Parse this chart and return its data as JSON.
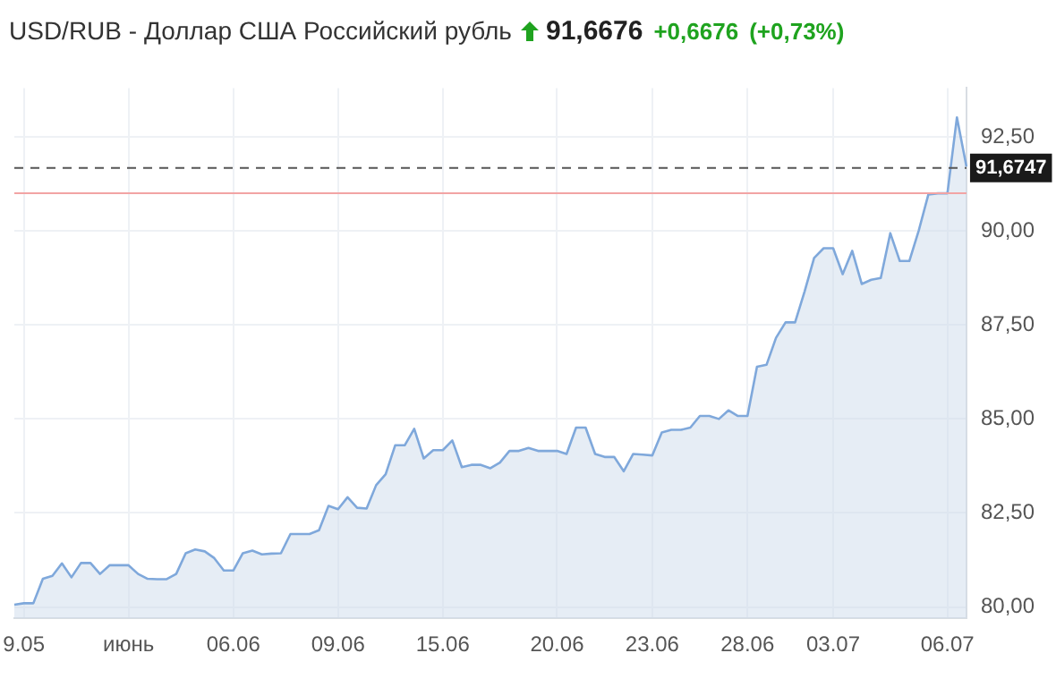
{
  "chart_data": {
    "type": "area",
    "title": "USD/RUB - Доллар США Российский рубль",
    "annotations": [
      "91,6676",
      "+0,6676",
      "(+0,73%)"
    ],
    "categories": [
      null,
      "9.05",
      null,
      null,
      null,
      null,
      null,
      null,
      null,
      null,
      null,
      null,
      "июнь",
      null,
      null,
      null,
      null,
      null,
      null,
      null,
      null,
      null,
      null,
      "06.06",
      null,
      null,
      null,
      null,
      null,
      null,
      null,
      null,
      null,
      null,
      "09.06",
      null,
      null,
      null,
      null,
      null,
      null,
      null,
      null,
      null,
      null,
      "15.06",
      null,
      null,
      null,
      null,
      null,
      null,
      null,
      null,
      null,
      null,
      null,
      "20.06",
      null,
      null,
      null,
      null,
      null,
      null,
      null,
      null,
      null,
      "23.06",
      null,
      null,
      null,
      null,
      null,
      null,
      null,
      null,
      null,
      "28.06",
      null,
      null,
      null,
      null,
      null,
      null,
      null,
      null,
      "03.07",
      null,
      null,
      null,
      null,
      null,
      null,
      null,
      null,
      null,
      null,
      null,
      "06.07",
      null,
      null
    ],
    "series": [
      {
        "color": "#7fa8db",
        "values": [
          80.06,
          80.1,
          80.1,
          80.75,
          80.83,
          81.16,
          80.79,
          81.17,
          81.17,
          80.88,
          81.11,
          81.11,
          81.11,
          80.88,
          80.75,
          80.74,
          80.74,
          80.88,
          81.43,
          81.53,
          81.48,
          81.3,
          80.97,
          80.97,
          81.43,
          81.5,
          81.4,
          81.42,
          81.43,
          81.94,
          81.94,
          81.94,
          82.04,
          82.69,
          82.6,
          82.92,
          82.64,
          82.62,
          83.24,
          83.53,
          84.3,
          84.3,
          84.74,
          83.95,
          84.17,
          84.17,
          84.43,
          83.72,
          83.78,
          83.78,
          83.69,
          83.84,
          84.15,
          84.15,
          84.23,
          84.15,
          84.15,
          84.15,
          84.07,
          84.77,
          84.77,
          84.07,
          83.99,
          83.99,
          83.61,
          84.07,
          84.05,
          84.03,
          84.64,
          84.71,
          84.71,
          84.77,
          85.08,
          85.08,
          85.0,
          85.23,
          85.08,
          85.08,
          86.39,
          86.44,
          87.16,
          87.57,
          87.57,
          88.39,
          89.28,
          89.54,
          89.54,
          88.85,
          89.47,
          88.59,
          88.7,
          88.75,
          89.94,
          89.2,
          89.2,
          90.02,
          90.97,
          91.0,
          91.0,
          93.02,
          91.71
        ]
      }
    ],
    "ylim": [
      79.7,
      93.8
    ],
    "yticks": [
      {
        "value": 80,
        "label": "80,00"
      },
      {
        "value": 82.5,
        "label": "82,50"
      },
      {
        "value": 85,
        "label": "85,00"
      },
      {
        "value": 87.5,
        "label": "87,50"
      },
      {
        "value": 90,
        "label": "90,00"
      },
      {
        "value": 92.5,
        "label": "92,50"
      }
    ],
    "ref_lines": [
      {
        "axis": "y",
        "value": 91.6747,
        "label": "91,6747",
        "color": "#555555",
        "line_style": "dashed"
      },
      {
        "axis": "y",
        "value": 91.0,
        "color": "#f2a4a4",
        "line_style": "solid"
      }
    ],
    "grid": true,
    "legend": false,
    "marker": "none",
    "line_style": "solid"
  }
}
